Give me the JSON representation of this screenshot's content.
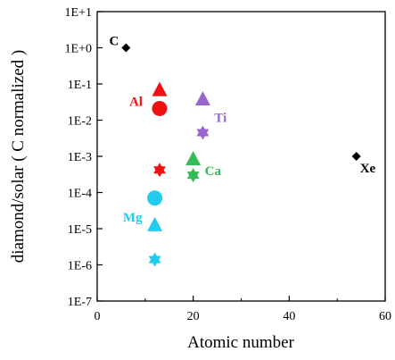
{
  "chart_data": {
    "type": "scatter",
    "xlabel": "Atomic number",
    "ylabel": "diamond/solar ( C normalized )",
    "xlim": [
      0,
      60
    ],
    "ylim": [
      1e-07,
      10
    ],
    "y_scale": "log",
    "x_ticks": [
      0,
      20,
      40,
      60
    ],
    "x_tick_labels": [
      "0",
      "20",
      "40",
      "60"
    ],
    "y_ticks": [
      1e-07,
      1e-06,
      1e-05,
      0.0001,
      0.001,
      0.01,
      0.1,
      1,
      10
    ],
    "y_tick_labels": [
      "1E-7",
      "1E-6",
      "1E-5",
      "1E-4",
      "1E-3",
      "1E-2",
      "1E-1",
      "1E+0",
      "1E+1"
    ],
    "grid": false,
    "legend": "none",
    "series": [
      {
        "color": "#000000",
        "points": [
          {
            "x": 6,
            "y": 1.0,
            "marker": "diamond"
          },
          {
            "x": 54,
            "y": 0.001,
            "marker": "diamond"
          }
        ]
      },
      {
        "color": "#ee1111",
        "points": [
          {
            "x": 13,
            "y": 0.065,
            "marker": "triangle"
          },
          {
            "x": 13,
            "y": 0.021,
            "marker": "circle"
          },
          {
            "x": 13,
            "y": 0.00042,
            "marker": "star"
          }
        ]
      },
      {
        "color": "#9966cc",
        "points": [
          {
            "x": 22,
            "y": 0.036,
            "marker": "triangle"
          },
          {
            "x": 22,
            "y": 0.0045,
            "marker": "star"
          }
        ]
      },
      {
        "color": "#33bb55",
        "points": [
          {
            "x": 20,
            "y": 0.0008,
            "marker": "triangle"
          },
          {
            "x": 20,
            "y": 0.0003,
            "marker": "star"
          }
        ]
      },
      {
        "color": "#22ccee",
        "points": [
          {
            "x": 12,
            "y": 7e-05,
            "marker": "circle"
          },
          {
            "x": 12,
            "y": 1.2e-05,
            "marker": "triangle"
          },
          {
            "x": 12,
            "y": 1.4e-06,
            "marker": "star"
          }
        ]
      }
    ],
    "annotations": [
      {
        "text": "C",
        "x": 6,
        "y": 1.0,
        "color": "#000000",
        "anchor": "end"
      },
      {
        "text": "Xe",
        "x": 54,
        "y": 0.001,
        "color": "#000000",
        "anchor": "start-below"
      },
      {
        "text": "Al",
        "x": 13,
        "y": 0.021,
        "color": "#ee1111",
        "anchor": "end"
      },
      {
        "text": "Ti",
        "x": 22,
        "y": 0.0045,
        "color": "#9966cc",
        "anchor": "start"
      },
      {
        "text": "Ca",
        "x": 20,
        "y": 0.0003,
        "color": "#33bb55",
        "anchor": "start"
      },
      {
        "text": "Mg",
        "x": 12,
        "y": 1.2e-05,
        "color": "#22ccee",
        "anchor": "end"
      }
    ]
  }
}
